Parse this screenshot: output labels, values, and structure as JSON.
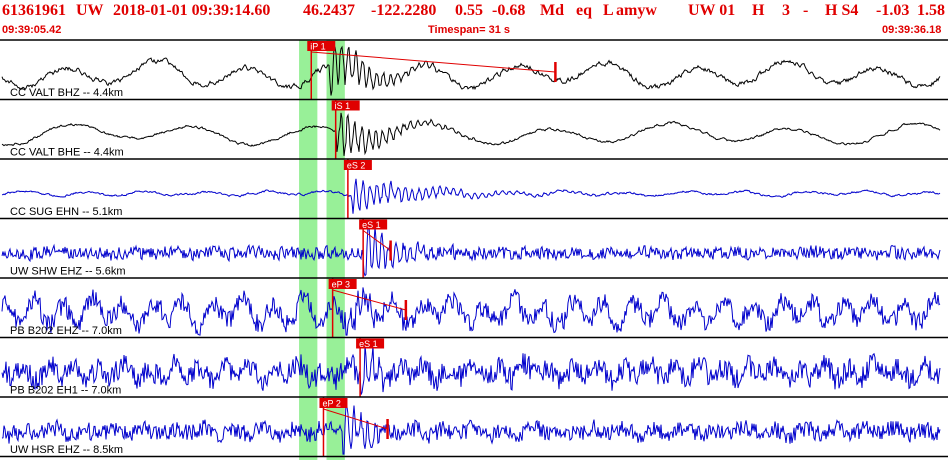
{
  "header": {
    "event_id": "61361961",
    "network": "UW",
    "datetime": "2018-01-01 09:39:14.60",
    "lat": "46.2437",
    "lon": "-122.2280",
    "depth": "0.55",
    "magnitude": "-0.68",
    "mag_type": "Md",
    "event_type": "eq",
    "location_type": "L",
    "author": "amyw",
    "summary": "UW 01",
    "gt": "H",
    "nphases": "3",
    "dash": "-",
    "quality": "H S4",
    "v1": "-1.03",
    "v2": "1.58"
  },
  "timebar": {
    "start": "09:39:05.42",
    "span_label": "Timespan=  31 s",
    "end": "09:39:36.18"
  },
  "chart_data": {
    "type": "line",
    "x_range_s": [
      0,
      31
    ],
    "series": [
      {
        "name": "CC VALT BHZ -- 4.4km",
        "color": "#000000",
        "onset_s": 10.8,
        "pick": {
          "label": "iP 1",
          "t_s": 10.2
        },
        "coda_end_s": 18.2
      },
      {
        "name": "CC VALT BHE -- 4.4km",
        "color": "#000000",
        "onset_s": 11.0,
        "pick": {
          "label": "iS 1",
          "t_s": 11.0
        }
      },
      {
        "name": "CC SUG EHN -- 5.1km",
        "color": "#0000cc",
        "onset_s": 11.5,
        "pick": {
          "label": "eS 2",
          "t_s": 11.4
        }
      },
      {
        "name": "UW SHW EHZ -- 5.6km",
        "color": "#0000cc",
        "onset_s": 11.9,
        "pick": {
          "label": "eS 1",
          "t_s": 11.9
        },
        "coda_end_s": 12.8
      },
      {
        "name": "PB B202 EHZ -- 7.0km",
        "color": "#0000cc",
        "onset_s": 11.3,
        "pick": {
          "label": "eP 3",
          "t_s": 10.9
        },
        "coda_end_s": 13.3
      },
      {
        "name": "PB B202 EH1 -- 7.0km",
        "color": "#0000cc",
        "onset_s": 11.8,
        "pick": {
          "label": "eS 1",
          "t_s": 11.8
        }
      },
      {
        "name": "UW HSR EHZ -- 8.5km",
        "color": "#0000cc",
        "onset_s": 11.2,
        "pick": {
          "label": "eP 2",
          "t_s": 10.6
        },
        "coda_end_s": 12.7
      }
    ],
    "windows_s": [
      [
        9.8,
        10.4
      ],
      [
        10.7,
        11.3
      ]
    ],
    "window_color": "#98f098",
    "trace_color_black": "#000000",
    "trace_color_blue": "#0000cc",
    "pick_color": "#e00000"
  }
}
